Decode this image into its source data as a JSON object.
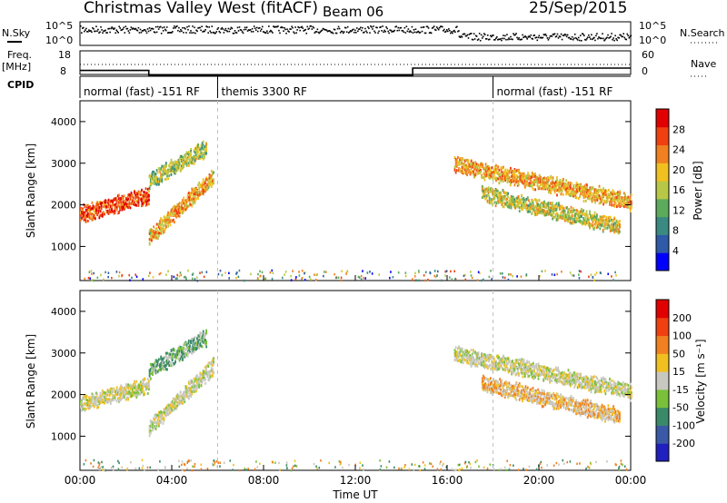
{
  "header": {
    "title": "Christmas Valley West (fitACF)",
    "beam": "Beam 06",
    "date": "25/Sep/2015"
  },
  "noise_panel": {
    "left_label": "N.Sky",
    "right_label": "N.Search",
    "left_ticks": [
      "10^5",
      "10^0"
    ],
    "right_ticks": [
      "10^5",
      "10^0"
    ]
  },
  "freq_panel": {
    "left_label_1": "Freq.",
    "left_label_2": "[MHz]",
    "right_label": "Nave",
    "left_ticks": [
      "18",
      "8"
    ],
    "right_ticks": [
      "60",
      "0"
    ]
  },
  "cpid": {
    "label": "CPID",
    "segments": [
      {
        "label": "normal (fast) -151 RF",
        "start_hour": 0,
        "end_hour": 6
      },
      {
        "label": "themis 3300 RF",
        "start_hour": 6,
        "end_hour": 18
      },
      {
        "label": "normal (fast) -151 RF",
        "start_hour": 18,
        "end_hour": 24
      }
    ]
  },
  "power_panel": {
    "ylabel": "Slant Range [km]",
    "yticks": [
      "4000",
      "3000",
      "2000",
      "1000"
    ],
    "colorbar_label": "Power [dB]",
    "colorbar_ticks": [
      "28",
      "24",
      "20",
      "16",
      "12",
      "8",
      "4"
    ],
    "colors": [
      "#0000ff",
      "#2e5aa8",
      "#3a8a82",
      "#5cab5c",
      "#b8c846",
      "#f0c020",
      "#f08020",
      "#f04010",
      "#e00000"
    ]
  },
  "velocity_panel": {
    "ylabel": "Slant Range [km]",
    "yticks": [
      "4000",
      "3000",
      "2000",
      "1000"
    ],
    "colorbar_label": "Velocity [m s⁻¹]",
    "colorbar_ticks": [
      "200",
      "100",
      "50",
      "15",
      "-15",
      "-50",
      "-100",
      "-200"
    ],
    "colors": [
      "#2020c0",
      "#3a5aa8",
      "#3a8a6a",
      "#7ac03a",
      "#c8c8c0",
      "#f0c020",
      "#f08020",
      "#f04010",
      "#e00000"
    ]
  },
  "xaxis": {
    "label": "Time UT",
    "ticks": [
      "00:00",
      "04:00",
      "08:00",
      "12:00",
      "16:00",
      "20:00",
      "00:00"
    ]
  },
  "chart_data": {
    "type": "heatmap",
    "title": "Christmas Valley West (fitACF)",
    "subtitle": "Beam 06 — 25/Sep/2015",
    "xlabel": "Time UT",
    "ylabel": "Slant Range [km]",
    "x_range_hours": [
      0,
      24
    ],
    "y_range_km": [
      180,
      4500
    ],
    "grid": false,
    "noise_level_steps": [
      {
        "start_hour": 0,
        "end_hour": 16.5,
        "level": "high"
      },
      {
        "start_hour": 16.5,
        "end_hour": 24,
        "level": "low"
      }
    ],
    "frequency_mhz_steps": [
      {
        "start_hour": 0,
        "end_hour": 3,
        "value": 12
      },
      {
        "start_hour": 3,
        "end_hour": 14.5,
        "value": 10
      },
      {
        "start_hour": 14.5,
        "end_hour": 24,
        "value": 13
      }
    ],
    "echo_regions": [
      {
        "name": "morning band",
        "start_hour": 0,
        "end_hour": 3,
        "range_start_km": 1800,
        "range_end_km": 2250,
        "power_db": 26,
        "velocity": 0
      },
      {
        "name": "dip band",
        "start_hour": 3,
        "end_hour": 5.8,
        "range_start_km": 1250,
        "range_end_km": 2700,
        "power_db": 20,
        "velocity": 0
      },
      {
        "name": "upper arc",
        "start_hour": 3,
        "end_hour": 5.5,
        "range_start_km": 2600,
        "range_end_km": 3400,
        "power_db": 14,
        "velocity": 30
      },
      {
        "name": "evening band",
        "start_hour": 16.3,
        "end_hour": 24,
        "range_start_km": 3000,
        "range_end_km": 2100,
        "power_db": 20,
        "velocity": 0
      },
      {
        "name": "evening lower arcs",
        "start_hour": 17.5,
        "end_hour": 23.5,
        "range_start_km": 2300,
        "range_end_km": 1500,
        "power_db": 16,
        "velocity": -20
      }
    ]
  }
}
